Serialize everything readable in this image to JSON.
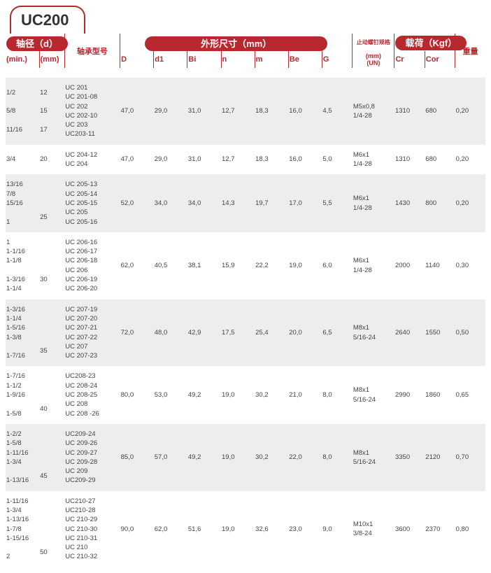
{
  "title": "UC200",
  "headers": {
    "shaft_dia": "轴径（d）",
    "outer_dim": "外形尺寸（mm）",
    "load": "载荷（Kgf）",
    "min": "(min.)",
    "mm": "(mm)",
    "model": "轴承型号",
    "D": "D",
    "d1": "d1",
    "Bi": "Bi",
    "n": "n",
    "m": "m",
    "Be": "Be",
    "G": "G",
    "setscrew": "止动螺钉规格",
    "un": "(mm)\n(UN)",
    "Cr": "Cr",
    "Cor": "Cor",
    "weight": "重量"
  },
  "rows": [
    {
      "alt": true,
      "min": "1/2\n\n5/8\n\n11/16",
      "mm": "12\n\n15\n\n17",
      "model": "UC 201\nUC 201-08\nUC 202\nUC 202-10\nUC 203\nUC203-11",
      "D": "47,0",
      "d1": "29,0",
      "Bi": "31,0",
      "n": "12,7",
      "m": "18,3",
      "Be": "16,0",
      "G": "4,5",
      "un": "M5x0,8\n1/4-28",
      "Cr": "1310",
      "Cor": "680",
      "w": "0,20"
    },
    {
      "alt": false,
      "min": "3/4",
      "mm": "20",
      "model": "UC 204-12\nUC 204",
      "D": "47,0",
      "d1": "29,0",
      "Bi": "31,0",
      "n": "12,7",
      "m": "18,3",
      "Be": "16,0",
      "G": "5,0",
      "un": "M6x1\n1/4-28",
      "Cr": "1310",
      "Cor": "680",
      "w": "0,20"
    },
    {
      "alt": true,
      "min": "13/16\n7/8\n15/16\n\n1",
      "mm": "\n\n\n25",
      "model": "UC 205-13\nUC 205-14\nUC 205-15\nUC 205\nUC 205-16",
      "D": "52,0",
      "d1": "34,0",
      "Bi": "34,0",
      "n": "14,3",
      "m": "19,7",
      "Be": "17,0",
      "G": "5,5",
      "un": "M6x1\n1/4-28",
      "Cr": "1430",
      "Cor": "800",
      "w": "0,20"
    },
    {
      "alt": false,
      "min": "1\n1-1/16\n1-1/8\n\n1-3/16\n1-1/4",
      "mm": "\n\n\n30",
      "model": "UC 206-16\nUC 206-17\nUC 206-18\nUC 206\nUC 206-19\nUC 206-20",
      "D": "62,0",
      "d1": "40,5",
      "Bi": "38,1",
      "n": "15,9",
      "m": "22,2",
      "Be": "19,0",
      "G": "6,0",
      "un": "M6x1\n1/4-28",
      "Cr": "2000",
      "Cor": "1140",
      "w": "0,30"
    },
    {
      "alt": true,
      "min": "1-3/16\n1-1/4\n1-5/16\n1-3/8\n\n1-7/16",
      "mm": "\n\n\n\n35",
      "model": "UC 207-19\nUC 207-20\nUC 207-21\nUC 207-22\nUC 207\nUC 207-23",
      "D": "72,0",
      "d1": "48,0",
      "Bi": "42,9",
      "n": "17,5",
      "m": "25,4",
      "Be": "20,0",
      "G": "6,5",
      "un": "M8x1\n5/16-24",
      "Cr": "2640",
      "Cor": "1550",
      "w": "0,50"
    },
    {
      "alt": false,
      "min": "1-7/16\n1-1/2\n1-9/16\n\n1-5/8",
      "mm": "\n\n\n40",
      "model": "UC208-23\nUC 208-24\nUC 208-25\nUC 208\nUC 208 -26",
      "D": "80,0",
      "d1": "53,0",
      "Bi": "49,2",
      "n": "19,0",
      "m": "30,2",
      "Be": "21,0",
      "G": "8,0",
      "un": "M8x1\n5/16-24",
      "Cr": "2990",
      "Cor": "1860",
      "w": "0,65"
    },
    {
      "alt": true,
      "min": "1-2/2\n1-5/8\n1-11/16\n1-3/4\n\n1-13/16",
      "mm": "\n\n\n\n45",
      "model": "UC209-24\nUC 209-26\nUC 209-27\nUC 209-28\nUC 209\nUC209-29",
      "D": "85,0",
      "d1": "57,0",
      "Bi": "49,2",
      "n": "19,0",
      "m": "30,2",
      "Be": "22,0",
      "G": "8,0",
      "un": "M8x1\n5/16-24",
      "Cr": "3350",
      "Cor": "2120",
      "w": "0,70"
    },
    {
      "alt": false,
      "min": "1-11/16\n1-3/4\n1-13/16\n1-7/8\n1-15/16\n\n2",
      "mm": "\n\n\n\n\n50",
      "model": "UC210-27\nUC210-28\nUC 210-29\nUC 210-30\nUC 210-31\nUC 210\nUC 210-32",
      "D": "90,0",
      "d1": "62,0",
      "Bi": "51,6",
      "n": "19,0",
      "m": "32,6",
      "Be": "23,0",
      "G": "9,0",
      "un": "M10x1\n3/8-24",
      "Cr": "3600",
      "Cor": "2370",
      "w": "0,80"
    }
  ]
}
